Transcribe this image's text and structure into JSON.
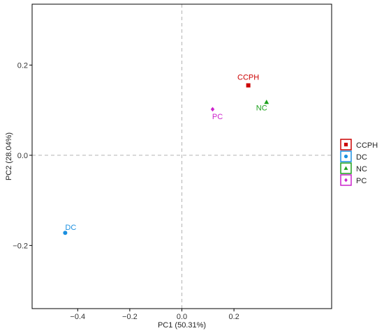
{
  "chart_data": {
    "type": "scatter",
    "title": "",
    "xlabel": "PC1 (50.31%)",
    "ylabel": "PC2 (28.04%)",
    "xlim": [
      -0.575,
      0.575
    ],
    "ylim": [
      -0.34,
      0.335
    ],
    "xticks": [
      -0.4,
      -0.2,
      0.0,
      0.2
    ],
    "xtick_labels": [
      "−0.4",
      "−0.2",
      "0.0",
      "0.2"
    ],
    "yticks": [
      -0.2,
      0.0,
      0.2
    ],
    "ytick_labels": [
      "−0.2",
      "0.0",
      "0.2"
    ],
    "grid": false,
    "reference_lines": {
      "x": 0,
      "y": 0,
      "style": "dashed"
    },
    "legend_position": "right",
    "series": [
      {
        "name": "CCPH",
        "marker": "square",
        "color": "#CC0000",
        "points": [
          {
            "x": 0.255,
            "y": 0.155,
            "label": "CCPH"
          }
        ]
      },
      {
        "name": "DC",
        "marker": "circle",
        "color": "#1A8FE0",
        "points": [
          {
            "x": -0.448,
            "y": -0.172,
            "label": "DC"
          }
        ]
      },
      {
        "name": "NC",
        "marker": "triangle",
        "color": "#1EA11E",
        "points": [
          {
            "x": 0.325,
            "y": 0.118,
            "label": "NC"
          }
        ]
      },
      {
        "name": "PC",
        "marker": "diamond",
        "color": "#CC22CC",
        "points": [
          {
            "x": 0.118,
            "y": 0.102,
            "label": "PC"
          }
        ]
      }
    ]
  }
}
